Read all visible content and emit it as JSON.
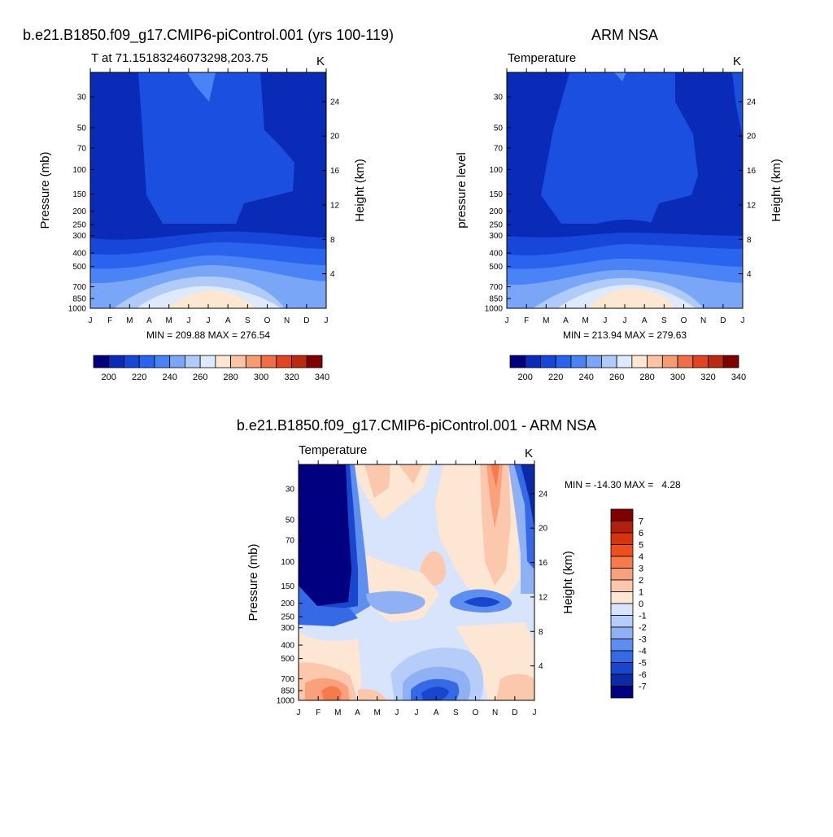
{
  "panels": [
    {
      "title": "b.e21.B1850.f09_g17.CMIP6-piControl.001 (yrs 100-119)",
      "subtitle": "T at 71.15183246073298,203.75",
      "units": "K",
      "ylabel_left": "Pressure (mb)",
      "ylabel_right": "Height (km)",
      "stats": "MIN = 209.88 MAX = 276.54",
      "colorbar_labels": [
        "200",
        "220",
        "240",
        "260",
        "280",
        "300",
        "320",
        "340"
      ]
    },
    {
      "title": "ARM NSA",
      "subtitle": "Temperature",
      "units": "K",
      "ylabel_left": "pressure level",
      "ylabel_right": "Height (km)",
      "stats": "MIN = 213.94 MAX = 279.63",
      "colorbar_labels": [
        "200",
        "220",
        "240",
        "260",
        "280",
        "300",
        "320",
        "340"
      ]
    },
    {
      "title": "b.e21.B1850.f09_g17.CMIP6-piControl.001 - ARM NSA",
      "subtitle": "Temperature",
      "units": "K",
      "ylabel_left": "Pressure (mb)",
      "ylabel_right": "Height (km)",
      "stats": "MIN = -14.30 MAX =   4.28",
      "colorbar_labels": [
        "7",
        "6",
        "5",
        "4",
        "3",
        "2",
        "1",
        "0",
        "-1",
        "-2",
        "-3",
        "-4",
        "-5",
        "-6",
        "-7"
      ]
    }
  ],
  "pressure_ticks": [
    "30",
    "50",
    "70",
    "100",
    "150",
    "200",
    "250",
    "300",
    "400",
    "500",
    "700",
    "850",
    "1000"
  ],
  "height_ticks": [
    "24",
    "20",
    "16",
    "12",
    "8",
    "4"
  ],
  "month_ticks": [
    "J",
    "F",
    "M",
    "A",
    "M",
    "J",
    "J",
    "A",
    "S",
    "O",
    "N",
    "D",
    "J"
  ],
  "colors": {
    "temp_scale": [
      "#00007f",
      "#0a2ab8",
      "#1747d8",
      "#2a63ee",
      "#4a83f5",
      "#7aa6f7",
      "#b1cbf9",
      "#dde9fc",
      "#fde6d2",
      "#fbc2a4",
      "#f79b75",
      "#ef6e47",
      "#e04421",
      "#bb2a0f",
      "#800000"
    ],
    "diff_scale": [
      "#800000",
      "#b21f0c",
      "#d8320f",
      "#ef4e1f",
      "#f77a4d",
      "#f9a07c",
      "#fbc8ad",
      "#fde6d4",
      "#d8e4fb",
      "#b5cdf8",
      "#8fb1f4",
      "#5e8ff0",
      "#3569e6",
      "#1a45cd",
      "#0a2aa8",
      "#000080"
    ],
    "model_field": {
      "cold": "#0a2ab8",
      "mid": "#1a4fe0",
      "warm_band": "#dde9fc",
      "warmest": "#fde6d2"
    }
  },
  "chart_data": [
    {
      "type": "heatmap",
      "title": "b.e21.B1850.f09_g17.CMIP6-piControl.001 (yrs 100-119)",
      "x": [
        "J",
        "F",
        "M",
        "A",
        "M",
        "J",
        "J",
        "A",
        "S",
        "O",
        "N",
        "D",
        "J"
      ],
      "y_pressure_mb": [
        30,
        50,
        70,
        100,
        150,
        200,
        250,
        300,
        400,
        500,
        700,
        850,
        1000
      ],
      "ylim": [
        1000,
        20
      ],
      "min": 209.88,
      "max": 276.54,
      "units": "K"
    },
    {
      "type": "heatmap",
      "title": "ARM NSA",
      "x": [
        "J",
        "F",
        "M",
        "A",
        "M",
        "J",
        "J",
        "A",
        "S",
        "O",
        "N",
        "D",
        "J"
      ],
      "y_pressure_mb": [
        30,
        50,
        70,
        100,
        150,
        200,
        250,
        300,
        400,
        500,
        700,
        850,
        1000
      ],
      "ylim": [
        1000,
        20
      ],
      "min": 213.94,
      "max": 279.63,
      "units": "K"
    },
    {
      "type": "heatmap",
      "title": "b.e21.B1850.f09_g17.CMIP6-piControl.001 - ARM NSA",
      "x": [
        "J",
        "F",
        "M",
        "A",
        "M",
        "J",
        "J",
        "A",
        "S",
        "O",
        "N",
        "D",
        "J"
      ],
      "y_pressure_mb": [
        30,
        50,
        70,
        100,
        150,
        200,
        250,
        300,
        400,
        500,
        700,
        850,
        1000
      ],
      "ylim": [
        1000,
        20
      ],
      "min": -14.3,
      "max": 4.28,
      "units": "K"
    }
  ]
}
